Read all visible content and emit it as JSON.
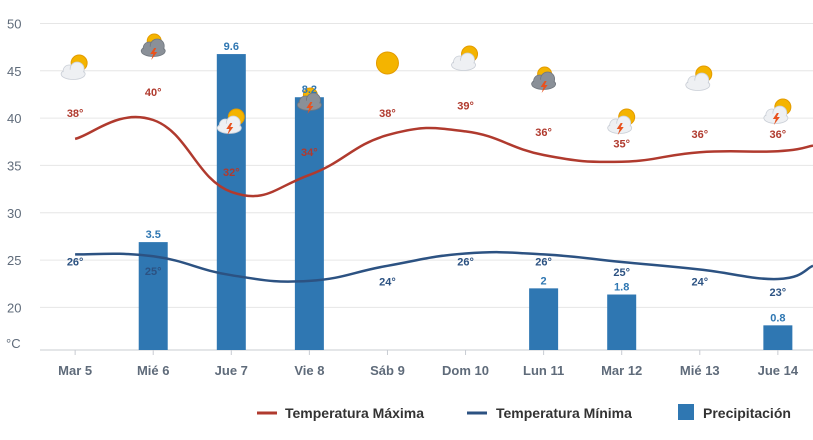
{
  "chart_data": {
    "type": "line",
    "categories": [
      "Mar 5",
      "Mié 6",
      "Jue 7",
      "Vie 8",
      "Sáb 9",
      "Dom 10",
      "Lun 11",
      "Mar 12",
      "Mié 13",
      "Jue 14"
    ],
    "series": [
      {
        "name": "Temperatura Máxima",
        "kind": "line",
        "color": "#b03a2e",
        "curve": [
          [
            5,
            37.8
          ],
          [
            6,
            39.8
          ],
          [
            7,
            32.2
          ],
          [
            8,
            34.0
          ],
          [
            9,
            38.2
          ],
          [
            10,
            38.6
          ],
          [
            11,
            36.1
          ],
          [
            12,
            35.4
          ],
          [
            13,
            36.4
          ],
          [
            14,
            36.5
          ],
          [
            14.45,
            37.1
          ]
        ],
        "labels": [
          "38°",
          "40°",
          "32°",
          "34°",
          "38°",
          "39°",
          "36°",
          "35°",
          "36°",
          "36°"
        ],
        "label_values": [
          38,
          40,
          32,
          34,
          38,
          39,
          36,
          35,
          36,
          36
        ]
      },
      {
        "name": "Temperatura Mínima",
        "kind": "line",
        "color": "#2c5282",
        "curve": [
          [
            5,
            25.6
          ],
          [
            6,
            25.4
          ],
          [
            7,
            23.4
          ],
          [
            8,
            22.8
          ],
          [
            9,
            24.4
          ],
          [
            10,
            25.7
          ],
          [
            11,
            25.6
          ],
          [
            12,
            24.8
          ],
          [
            13,
            24.0
          ],
          [
            14,
            23.0
          ],
          [
            14.45,
            24.4
          ]
        ],
        "labels": [
          "26°",
          "25°",
          "",
          "",
          "24°",
          "26°",
          "26°",
          "25°",
          "24°",
          "23°"
        ],
        "label_values": [
          26,
          25,
          null,
          null,
          24,
          26,
          26,
          25,
          24,
          23
        ]
      },
      {
        "name": "Precipitación",
        "kind": "bar",
        "color": "#2f77b2",
        "values": [
          null,
          3.5,
          9.6,
          8.2,
          null,
          null,
          2,
          1.8,
          null,
          0.8
        ],
        "labels": [
          "",
          "3.5",
          "9.6",
          "8.2",
          "",
          "",
          "2",
          "1.8",
          "",
          "0.8"
        ]
      }
    ],
    "weather_icons": [
      "sun-cloud-icon",
      "storm-cloud-icon",
      "sun-storm-icon",
      "storm-cloud-icon",
      "sun-icon",
      "sun-cloud-icon",
      "storm-cloud-icon",
      "sun-storm-icon",
      "sun-cloud-icon",
      "sun-storm-icon"
    ],
    "yaxis": {
      "ticks": [
        20,
        25,
        30,
        35,
        40,
        45,
        50
      ],
      "unit_label": "°C",
      "ylim": [
        15.5,
        51
      ]
    },
    "precip_scale": {
      "ylim": [
        0,
        10.9
      ]
    },
    "xlim": [
      4.55,
      14.45
    ],
    "grid": true,
    "legend_position": "bottom-right",
    "legend": [
      "Temperatura Máxima",
      "Temperatura Mínima",
      "Precipitación"
    ]
  }
}
